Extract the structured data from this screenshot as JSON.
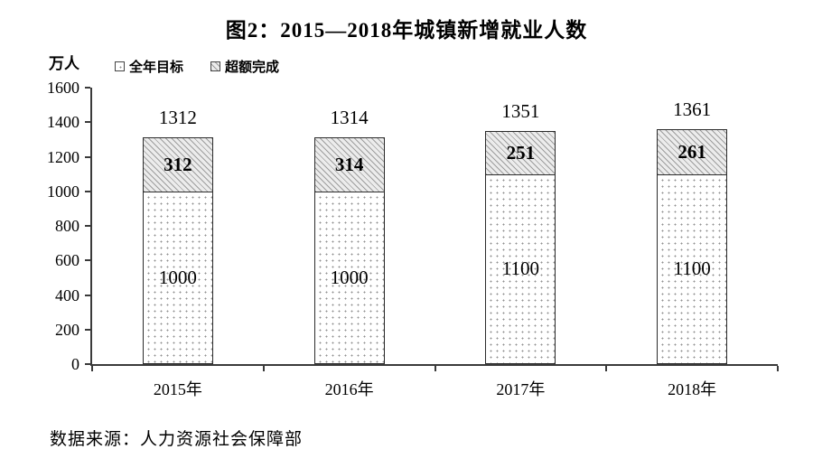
{
  "chart_data": {
    "type": "bar",
    "stacked": true,
    "title": "图2：2015—2018年城镇新增就业人数",
    "unit_label": "万人",
    "categories": [
      "2015年",
      "2016年",
      "2017年",
      "2018年"
    ],
    "series": [
      {
        "name": "全年目标",
        "pattern": "dots",
        "values": [
          1000,
          1000,
          1100,
          1100
        ]
      },
      {
        "name": "超额完成",
        "pattern": "diagonal-hatch",
        "values": [
          312,
          314,
          251,
          261
        ]
      }
    ],
    "totals": [
      1312,
      1314,
      1351,
      1361
    ],
    "ylim": [
      0,
      1600
    ],
    "ytick_step": 200,
    "grid": false,
    "legend_position": "top-left",
    "source": "数据来源：人力资源社会保障部",
    "colors": {
      "axis": "#3a3a3a",
      "bar_border": "#2b2b2b",
      "hatch_background": "#ececec",
      "hatch_line": "#9d9d9d",
      "dot": "#8f8f8f",
      "text": "#000000"
    }
  }
}
